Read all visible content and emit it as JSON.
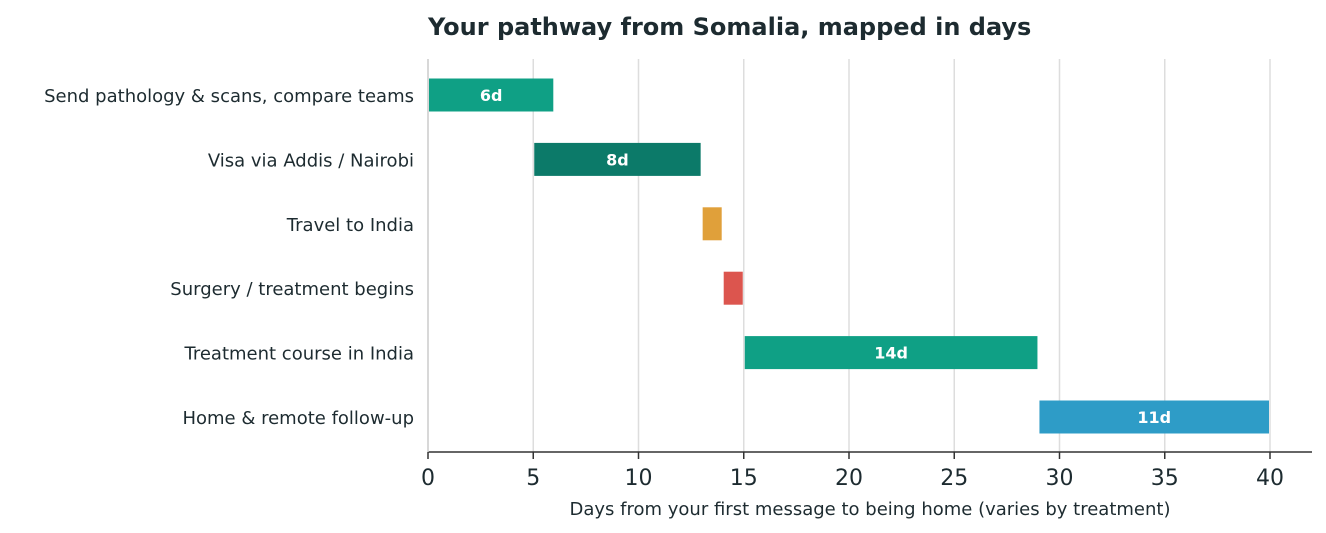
{
  "chart_data": {
    "type": "bar",
    "orientation": "horizontal-gantt",
    "title": "Your pathway from Somalia, mapped in days",
    "xlabel": "Days from your first message to being home (varies by treatment)",
    "ylabel": "",
    "xlim": [
      0,
      42
    ],
    "xticks": [
      0,
      5,
      10,
      15,
      20,
      25,
      30,
      35,
      40
    ],
    "grid": "vertical",
    "tasks": [
      {
        "label": "Send pathology & scans, compare teams",
        "start": 0,
        "end": 6,
        "bar_label": "6d",
        "color": "#0fa085"
      },
      {
        "label": "Visa via Addis / Nairobi",
        "start": 5,
        "end": 13,
        "bar_label": "8d",
        "color": "#0c7a69"
      },
      {
        "label": "Travel to India",
        "start": 13,
        "end": 14,
        "bar_label": "",
        "color": "#e0a03a"
      },
      {
        "label": "Surgery / treatment begins",
        "start": 14,
        "end": 15,
        "bar_label": "",
        "color": "#dc554e"
      },
      {
        "label": "Treatment course in India",
        "start": 15,
        "end": 29,
        "bar_label": "14d",
        "color": "#0fa085"
      },
      {
        "label": "Home & remote follow-up",
        "start": 29,
        "end": 40,
        "bar_label": "11d",
        "color": "#2e9cc7"
      }
    ]
  }
}
